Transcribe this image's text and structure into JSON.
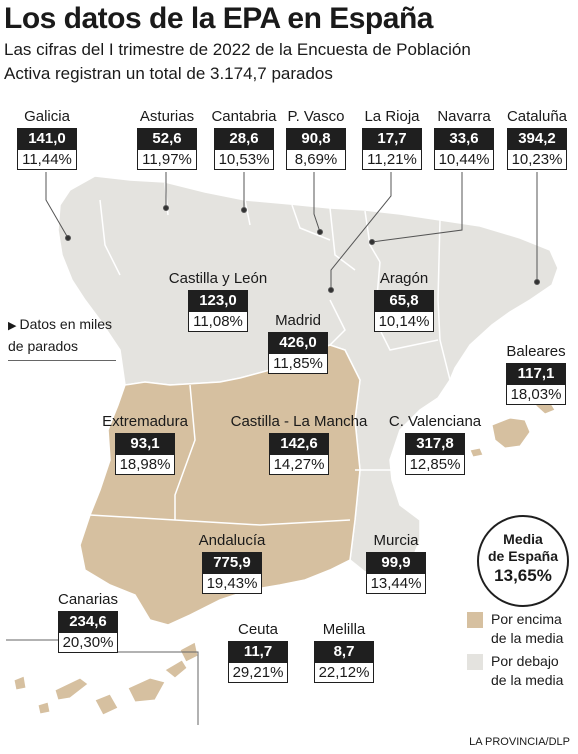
{
  "title": "Los datos de la EPA en España",
  "subtitle_line1": "Las cifras del I trimestre de 2022 de la Encuesta de Población",
  "subtitle_line2": "Activa registran un total de 3.174,7 parados",
  "note": "Datos en miles de parados",
  "average": {
    "label_line1": "Media",
    "label_line2": "de España",
    "value": "13,65%"
  },
  "legend": [
    {
      "label": "Por encima de la media",
      "color": "#d6c0a0"
    },
    {
      "label": "Por debajo de la media",
      "color": "#e4e3df"
    }
  ],
  "source": "LA PROVINCIA/DLP",
  "regions": [
    {
      "name": "Galicia",
      "value": "141,0",
      "pct": "11,44%",
      "status": "below"
    },
    {
      "name": "Asturias",
      "value": "52,6",
      "pct": "11,97%",
      "status": "below"
    },
    {
      "name": "Cantabria",
      "value": "28,6",
      "pct": "10,53%",
      "status": "below"
    },
    {
      "name": "P. Vasco",
      "value": "90,8",
      "pct": "8,69%",
      "status": "below"
    },
    {
      "name": "La Rioja",
      "value": "17,7",
      "pct": "11,21%",
      "status": "below"
    },
    {
      "name": "Navarra",
      "value": "33,6",
      "pct": "10,44%",
      "status": "below"
    },
    {
      "name": "Cataluña",
      "value": "394,2",
      "pct": "10,23%",
      "status": "below"
    },
    {
      "name": "Castilla y León",
      "value": "123,0",
      "pct": "11,08%",
      "status": "below"
    },
    {
      "name": "Aragón",
      "value": "65,8",
      "pct": "10,14%",
      "status": "below"
    },
    {
      "name": "Madrid",
      "value": "426,0",
      "pct": "11,85%",
      "status": "below"
    },
    {
      "name": "Baleares",
      "value": "117,1",
      "pct": "18,03%",
      "status": "above"
    },
    {
      "name": "Extremadura",
      "value": "93,1",
      "pct": "18,98%",
      "status": "above"
    },
    {
      "name": "Castilla - La Mancha",
      "value": "142,6",
      "pct": "14,27%",
      "status": "above"
    },
    {
      "name": "C. Valenciana",
      "value": "317,8",
      "pct": "12,85%",
      "status": "below"
    },
    {
      "name": "Andalucía",
      "value": "775,9",
      "pct": "19,43%",
      "status": "above"
    },
    {
      "name": "Murcia",
      "value": "99,9",
      "pct": "13,44%",
      "status": "below"
    },
    {
      "name": "Canarias",
      "value": "234,6",
      "pct": "20,30%",
      "status": "above"
    },
    {
      "name": "Ceuta",
      "value": "11,7",
      "pct": "29,21%",
      "status": "above"
    },
    {
      "name": "Melilla",
      "value": "8,7",
      "pct": "22,12%",
      "status": "above"
    }
  ]
}
